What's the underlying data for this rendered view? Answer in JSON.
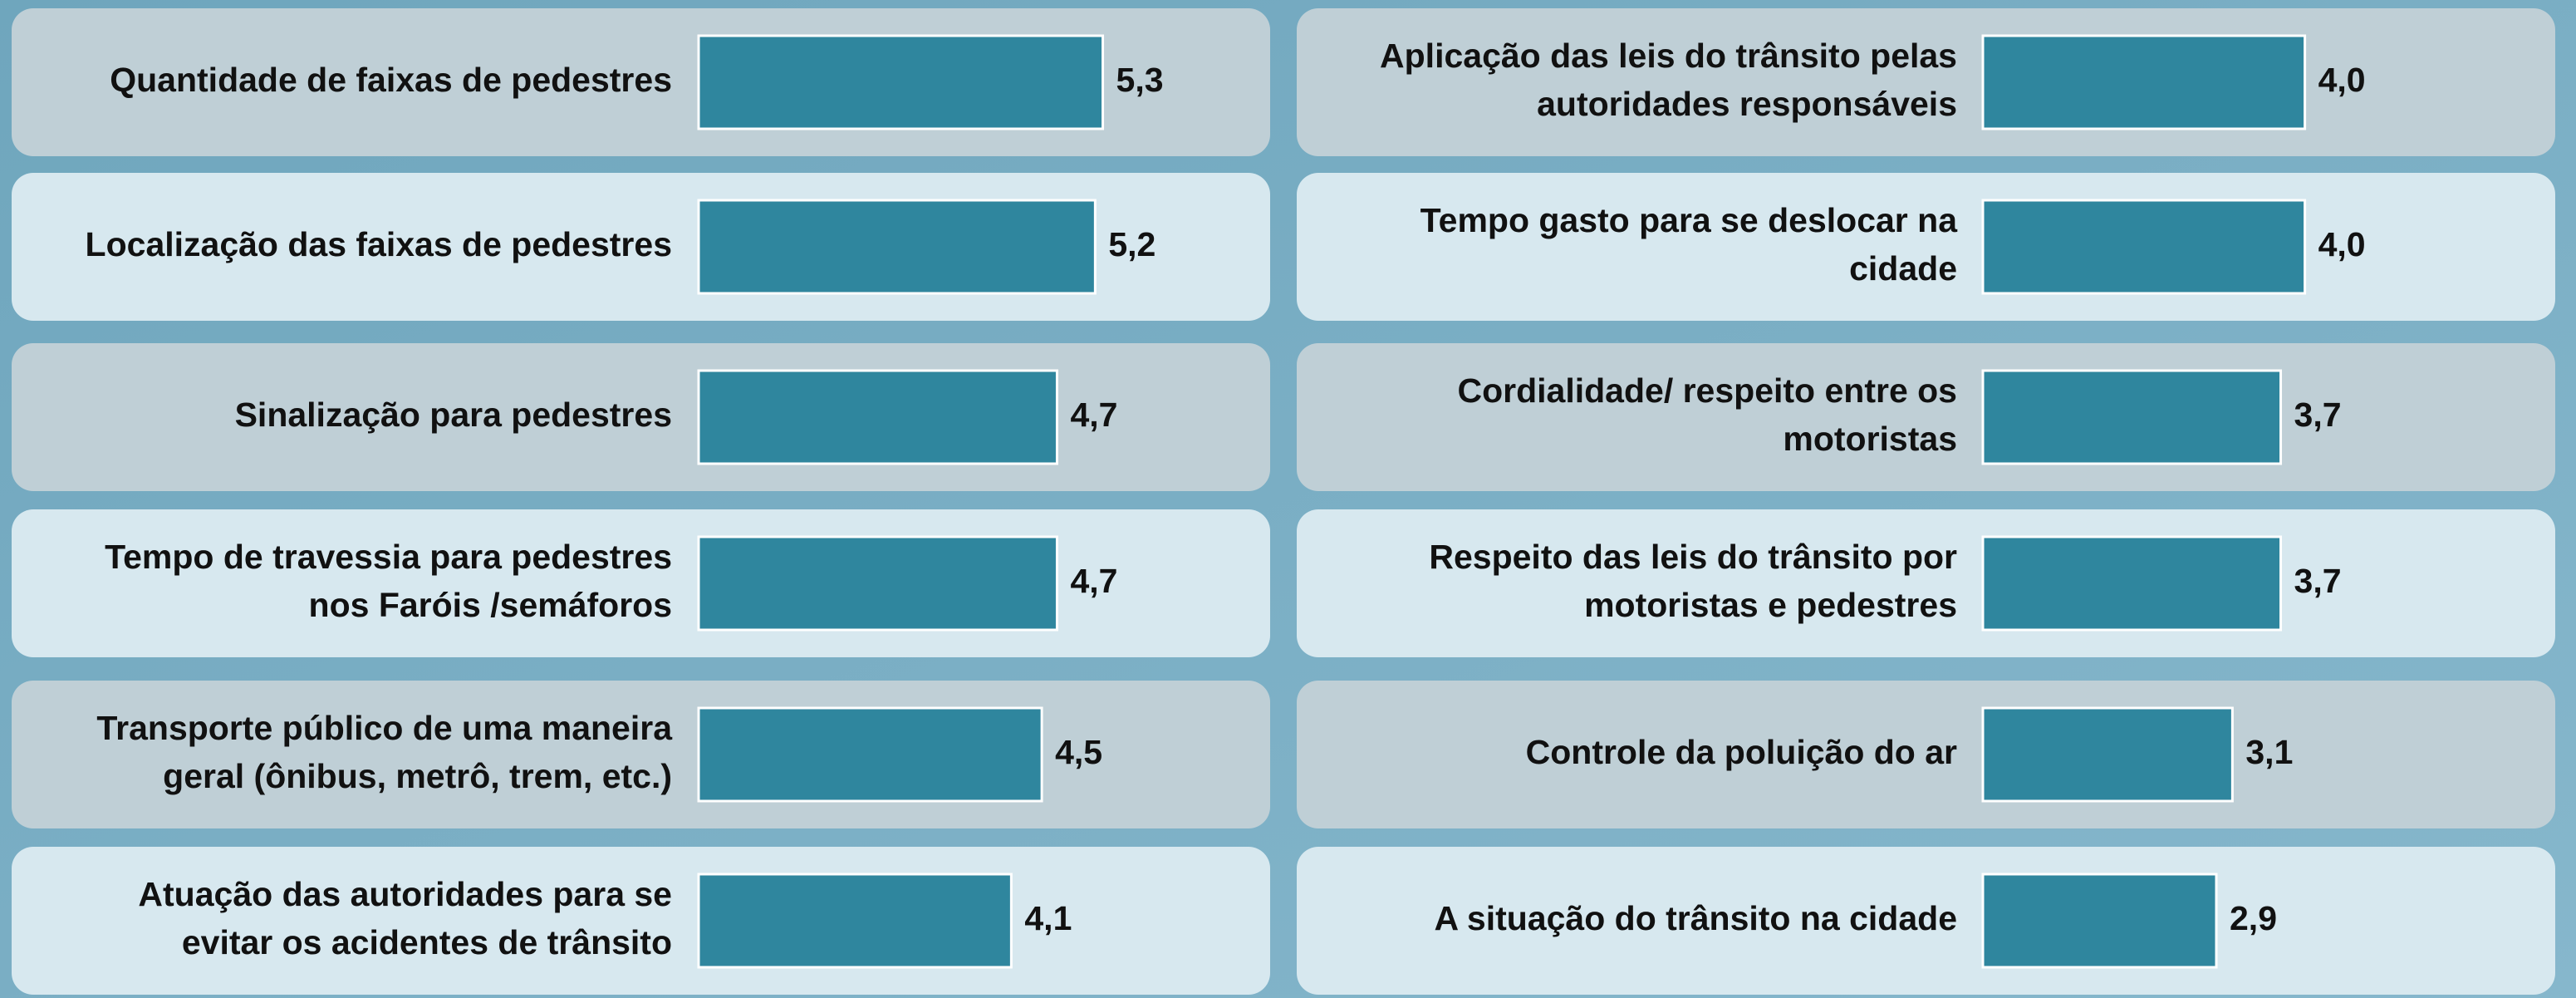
{
  "chart_data": [
    {
      "type": "bar",
      "orientation": "horizontal",
      "color": "#2f869e",
      "categories": [
        [
          "Quantidade de faixas de pedestres"
        ],
        [
          "Localização das faixas de pedestres"
        ],
        [
          "Sinalização para pedestres"
        ],
        [
          "Tempo de travessia para pedestres",
          "nos Faróis /semáforos"
        ],
        [
          "Transporte público de uma maneira",
          "geral (ônibus, metrô, trem, etc.)"
        ],
        [
          "Atuação das autoridades para se",
          "evitar os acidentes de trânsito"
        ]
      ],
      "values": [
        5.3,
        5.2,
        4.7,
        4.7,
        4.5,
        4.1
      ],
      "value_labels": [
        "5,3",
        "5,2",
        "4,7",
        "4,7",
        "4,5",
        "4,1"
      ]
    },
    {
      "type": "bar",
      "orientation": "horizontal",
      "color": "#2f869e",
      "categories": [
        [
          "Aplicação das leis do trânsito pelas",
          "autoridades responsáveis"
        ],
        [
          "Tempo gasto para se deslocar na",
          "cidade"
        ],
        [
          "Cordialidade/ respeito entre os",
          "motoristas"
        ],
        [
          "Respeito das leis do trânsito por",
          "motoristas e pedestres"
        ],
        [
          "Controle da poluição do ar"
        ],
        [
          "A situação do trânsito na cidade"
        ]
      ],
      "values": [
        4.0,
        4.0,
        3.7,
        3.7,
        3.1,
        2.9
      ],
      "value_labels": [
        "4,0",
        "4,0",
        "3,7",
        "3,7",
        "3,1",
        "2,9"
      ]
    }
  ]
}
